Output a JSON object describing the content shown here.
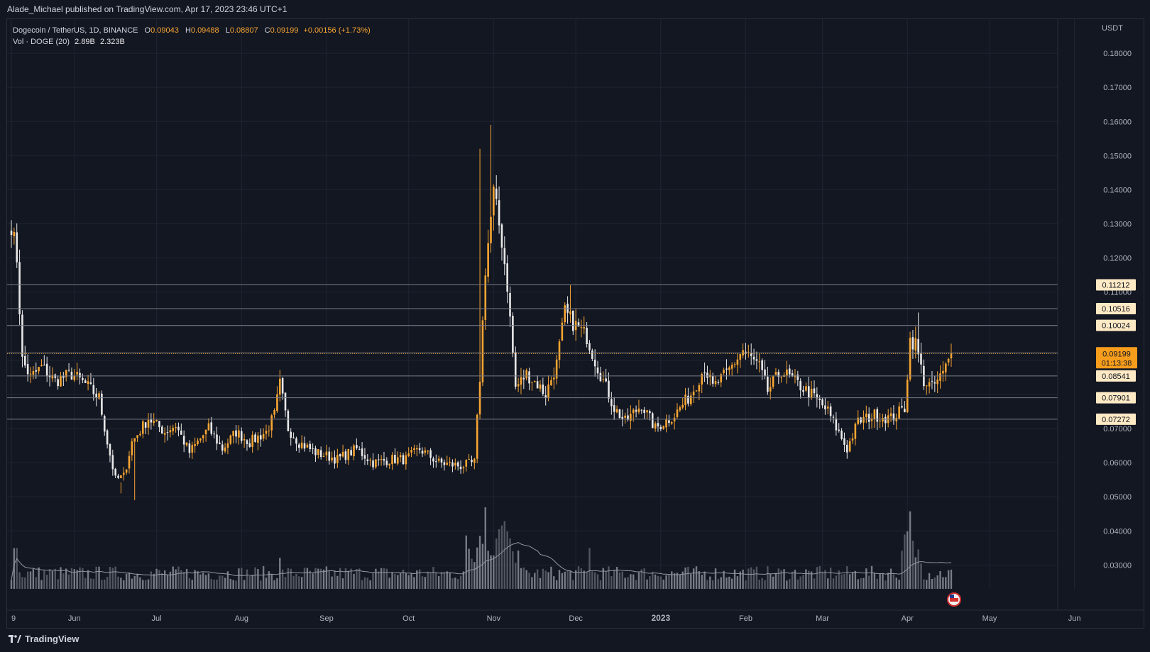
{
  "header": {
    "publisher_line": "Alade_Michael published on TradingView.com, Apr 17, 2023 23:46 UTC+1"
  },
  "legend": {
    "symbol": "Dogecoin / TetherUS, 1D, BINANCE",
    "o_label": "O",
    "o_value": "0.09043",
    "h_label": "H",
    "h_value": "0.09488",
    "l_label": "L",
    "l_value": "0.08807",
    "c_label": "C",
    "c_value": "0.09199",
    "change": "+0.00156 (+1.73%)",
    "vol_label": "Vol · DOGE (20)",
    "vol_value": "2.89B",
    "vol_ma": "2.323B"
  },
  "footer": {
    "brand": "TradingView"
  },
  "colors": {
    "background": "#131722",
    "up": "#f7a532",
    "down": "#e8e8e8",
    "grid": "#1f2433",
    "level": "#787b86",
    "price_line": "#f7a532"
  },
  "chart_data": {
    "type": "candlestick",
    "currency_label": "USDT",
    "price_axis": {
      "min": 0.023,
      "max": 0.19,
      "ticks": [
        "0.18000",
        "0.17000",
        "0.16000",
        "0.15000",
        "0.14000",
        "0.13000",
        "0.12000",
        "0.11000",
        "0.10000",
        "0.09000",
        "0.08000",
        "0.07000",
        "0.06000",
        "0.05000",
        "0.04000",
        "0.03000"
      ]
    },
    "time_axis": {
      "labels": [
        "9",
        "Jun",
        "Jul",
        "Aug",
        "Sep",
        "Oct",
        "Nov",
        "Dec",
        "2023",
        "Feb",
        "Mar",
        "Apr",
        "May",
        "Jun"
      ],
      "bold_labels": [
        "2023"
      ]
    },
    "horizontal_levels": [
      "0.11212",
      "0.10516",
      "0.10024",
      "0.09214",
      "0.08541",
      "0.07901",
      "0.07272"
    ],
    "last_price": {
      "value": "0.09199",
      "countdown": "01:13:38"
    },
    "anchors": [
      [
        "2022-05-09",
        0.13
      ],
      [
        "2022-05-11",
        0.12
      ],
      [
        "2022-05-13",
        0.09
      ],
      [
        "2022-05-16",
        0.085
      ],
      [
        "2022-05-20",
        0.088
      ],
      [
        "2022-05-25",
        0.084
      ],
      [
        "2022-05-31",
        0.086
      ],
      [
        "2022-06-05",
        0.083
      ],
      [
        "2022-06-10",
        0.079
      ],
      [
        "2022-06-13",
        0.066
      ],
      [
        "2022-06-16",
        0.055
      ],
      [
        "2022-06-19",
        0.056
      ],
      [
        "2022-06-22",
        0.066
      ],
      [
        "2022-06-28",
        0.073
      ],
      [
        "2022-07-04",
        0.069
      ],
      [
        "2022-07-08",
        0.071
      ],
      [
        "2022-07-13",
        0.063
      ],
      [
        "2022-07-20",
        0.07
      ],
      [
        "2022-07-25",
        0.064
      ],
      [
        "2022-07-30",
        0.069
      ],
      [
        "2022-08-04",
        0.066
      ],
      [
        "2022-08-10",
        0.069
      ],
      [
        "2022-08-13",
        0.074
      ],
      [
        "2022-08-15",
        0.083
      ],
      [
        "2022-08-18",
        0.07
      ],
      [
        "2022-08-22",
        0.066
      ],
      [
        "2022-08-28",
        0.063
      ],
      [
        "2022-09-05",
        0.061
      ],
      [
        "2022-09-12",
        0.064
      ],
      [
        "2022-09-18",
        0.06
      ],
      [
        "2022-09-25",
        0.061
      ],
      [
        "2022-09-30",
        0.061
      ],
      [
        "2022-10-05",
        0.064
      ],
      [
        "2022-10-12",
        0.06
      ],
      [
        "2022-10-20",
        0.059
      ],
      [
        "2022-10-25",
        0.06
      ],
      [
        "2022-10-27",
        0.085
      ],
      [
        "2022-10-29",
        0.117
      ],
      [
        "2022-11-01",
        0.139
      ],
      [
        "2022-11-04",
        0.125
      ],
      [
        "2022-11-06",
        0.112
      ],
      [
        "2022-11-09",
        0.082
      ],
      [
        "2022-11-13",
        0.086
      ],
      [
        "2022-11-17",
        0.083
      ],
      [
        "2022-11-20",
        0.08
      ],
      [
        "2022-11-24",
        0.089
      ],
      [
        "2022-11-27",
        0.104
      ],
      [
        "2022-11-30",
        0.101
      ],
      [
        "2022-12-05",
        0.097
      ],
      [
        "2022-12-08",
        0.09
      ],
      [
        "2022-12-12",
        0.082
      ],
      [
        "2022-12-15",
        0.076
      ],
      [
        "2022-12-19",
        0.072
      ],
      [
        "2022-12-25",
        0.077
      ],
      [
        "2022-12-30",
        0.07
      ],
      [
        "2023-01-06",
        0.074
      ],
      [
        "2023-01-12",
        0.08
      ],
      [
        "2023-01-17",
        0.088
      ],
      [
        "2023-01-20",
        0.082
      ],
      [
        "2023-01-25",
        0.086
      ],
      [
        "2023-01-31",
        0.093
      ],
      [
        "2023-02-06",
        0.088
      ],
      [
        "2023-02-09",
        0.081
      ],
      [
        "2023-02-14",
        0.087
      ],
      [
        "2023-02-20",
        0.083
      ],
      [
        "2023-02-25",
        0.08
      ],
      [
        "2023-03-03",
        0.075
      ],
      [
        "2023-03-10",
        0.064
      ],
      [
        "2023-03-14",
        0.072
      ],
      [
        "2023-03-20",
        0.074
      ],
      [
        "2023-03-26",
        0.073
      ],
      [
        "2023-03-31",
        0.076
      ],
      [
        "2023-04-02",
        0.096
      ],
      [
        "2023-04-04",
        0.095
      ],
      [
        "2023-04-07",
        0.084
      ],
      [
        "2023-04-10",
        0.082
      ],
      [
        "2023-04-14",
        0.086
      ],
      [
        "2023-04-17",
        0.092
      ]
    ],
    "volume_notes": "Volume histogram in the bottom pane with a 20-day moving average line; spikes near late Oct–early Nov 2022 and early Apr 2023."
  }
}
